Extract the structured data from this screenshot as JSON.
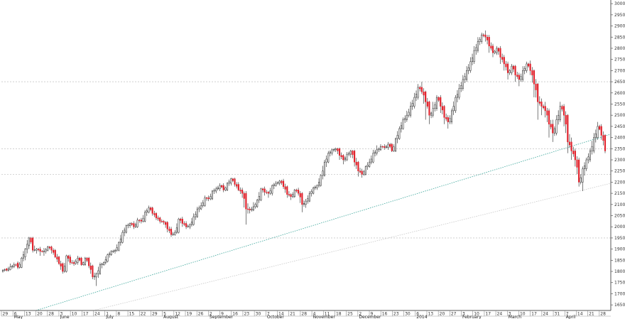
{
  "chart_data": {
    "type": "candlestick",
    "title": "",
    "xlabel": "",
    "ylabel": "",
    "ylim": [
      1625,
      3010
    ],
    "yticks": [
      1650,
      1700,
      1750,
      1800,
      1850,
      1900,
      1950,
      2000,
      2050,
      2100,
      2150,
      2200,
      2250,
      2300,
      2350,
      2400,
      2450,
      2500,
      2550,
      2600,
      2650,
      2700,
      2750,
      2800,
      2850,
      2900,
      2950,
      3000
    ],
    "ytick_labels": [
      "1650",
      "1700",
      "1750",
      "1800",
      "1850",
      "1900",
      "1950",
      "2000",
      "2050",
      "2100",
      "2150",
      "2200",
      "2250",
      "2300",
      "2350",
      "2400",
      "2450",
      "2500",
      "2550",
      "2600",
      "2650",
      "2700",
      "2750",
      "2800",
      "2850",
      "2900",
      "2950",
      "3000"
    ],
    "xtick_labels": [
      "29",
      "6",
      "13",
      "20",
      "28",
      "3",
      "10",
      "17",
      "24",
      "1",
      "8",
      "15",
      "22",
      "29",
      "5",
      "12",
      "19",
      "26",
      "2",
      "9",
      "16",
      "23",
      "30",
      "7",
      "14",
      "21",
      "28",
      "4",
      "11",
      "18",
      "25",
      "2",
      "9",
      "16",
      "23",
      "30",
      "6",
      "13",
      "20",
      "27",
      "3",
      "10",
      "17",
      "24",
      "3",
      "10",
      "17",
      "24",
      "31",
      "7",
      "14",
      "21",
      "28"
    ],
    "month_labels": [
      "May",
      "June",
      "July",
      "August",
      "September",
      "October",
      "November",
      "December",
      "2014",
      "February",
      "March",
      "April"
    ],
    "month_tick_index": [
      1,
      5,
      9,
      14,
      18,
      23,
      27,
      31,
      36,
      40,
      44,
      49
    ],
    "grid": false,
    "colors": {
      "up": "#ffffff",
      "down": "#e0202a",
      "outline": "#222222",
      "trend": "#3aa59a",
      "support": "#c8c8c8"
    },
    "horizontal_levels": [
      1950,
      2235,
      2350,
      2650
    ],
    "trendlines": [
      {
        "from": {
          "tick_index": 3,
          "value": 1625
        },
        "to": {
          "tick_index": 53,
          "value": 2415
        }
      },
      {
        "from": {
          "tick_index": 8,
          "value": 1625
        },
        "to": {
          "tick_index": 53,
          "value": 2195
        }
      }
    ],
    "ohlc_anchors": [
      [
        1800,
        1805,
        1795,
        1810
      ],
      [
        1812,
        1805,
        1800,
        1815
      ],
      [
        1808,
        1820,
        1805,
        1835
      ],
      [
        1822,
        1830,
        1815,
        1840
      ],
      [
        1838,
        1818,
        1810,
        1845
      ],
      [
        1818,
        1860,
        1815,
        1865
      ],
      [
        1865,
        1900,
        1850,
        1905
      ],
      [
        1915,
        1950,
        1900,
        1955
      ],
      [
        1950,
        1895,
        1885,
        1955
      ],
      [
        1895,
        1900,
        1880,
        1905
      ],
      [
        1900,
        1890,
        1870,
        1910
      ],
      [
        1888,
        1890,
        1870,
        1905
      ],
      [
        1895,
        1910,
        1890,
        1915
      ],
      [
        1910,
        1895,
        1880,
        1915
      ],
      [
        1895,
        1865,
        1860,
        1900
      ],
      [
        1865,
        1835,
        1830,
        1870
      ],
      [
        1835,
        1800,
        1790,
        1840
      ],
      [
        1800,
        1870,
        1795,
        1875
      ],
      [
        1865,
        1840,
        1830,
        1875
      ],
      [
        1840,
        1835,
        1825,
        1850
      ],
      [
        1840,
        1860,
        1830,
        1870
      ],
      [
        1860,
        1830,
        1825,
        1865
      ],
      [
        1830,
        1860,
        1825,
        1865
      ],
      [
        1860,
        1825,
        1815,
        1865
      ],
      [
        1825,
        1775,
        1765,
        1830
      ],
      [
        1775,
        1790,
        1735,
        1795
      ],
      [
        1790,
        1830,
        1785,
        1840
      ],
      [
        1830,
        1840,
        1825,
        1845
      ],
      [
        1845,
        1875,
        1840,
        1880
      ],
      [
        1875,
        1890,
        1870,
        1895
      ],
      [
        1890,
        1895,
        1880,
        1900
      ],
      [
        1895,
        1930,
        1890,
        1935
      ],
      [
        1930,
        1975,
        1925,
        1985
      ],
      [
        1975,
        2005,
        1970,
        2010
      ],
      [
        2005,
        2015,
        1995,
        2020
      ],
      [
        2015,
        2000,
        1990,
        2025
      ],
      [
        2000,
        2030,
        1995,
        2040
      ],
      [
        2030,
        2025,
        2015,
        2040
      ],
      [
        2025,
        2065,
        2020,
        2075
      ],
      [
        2065,
        2085,
        2060,
        2095
      ],
      [
        2085,
        2060,
        2050,
        2090
      ],
      [
        2060,
        2040,
        2030,
        2065
      ],
      [
        2040,
        2025,
        2015,
        2045
      ],
      [
        2025,
        2020,
        2010,
        2030
      ],
      [
        2020,
        1990,
        1975,
        2025
      ],
      [
        1990,
        1965,
        1955,
        2000
      ],
      [
        1965,
        1975,
        1960,
        1985
      ],
      [
        1975,
        2035,
        1970,
        2040
      ],
      [
        2035,
        2015,
        2000,
        2045
      ],
      [
        2015,
        2000,
        1990,
        2025
      ],
      [
        2000,
        2010,
        1990,
        2015
      ],
      [
        2010,
        2045,
        2005,
        2060
      ],
      [
        2045,
        2080,
        2040,
        2090
      ],
      [
        2080,
        2095,
        2075,
        2110
      ],
      [
        2095,
        2130,
        2090,
        2140
      ],
      [
        2130,
        2125,
        2115,
        2140
      ],
      [
        2125,
        2160,
        2120,
        2165
      ],
      [
        2160,
        2170,
        2150,
        2180
      ],
      [
        2170,
        2185,
        2160,
        2195
      ],
      [
        2185,
        2165,
        2155,
        2195
      ],
      [
        2165,
        2195,
        2160,
        2200
      ],
      [
        2195,
        2215,
        2185,
        2220
      ],
      [
        2215,
        2190,
        2180,
        2220
      ],
      [
        2190,
        2165,
        2160,
        2200
      ],
      [
        2165,
        2150,
        2130,
        2175
      ],
      [
        2150,
        2080,
        2010,
        2160
      ],
      [
        2080,
        2075,
        2060,
        2090
      ],
      [
        2075,
        2090,
        2070,
        2110
      ],
      [
        2090,
        2120,
        2085,
        2125
      ],
      [
        2120,
        2170,
        2115,
        2175
      ],
      [
        2170,
        2155,
        2140,
        2180
      ],
      [
        2155,
        2150,
        2130,
        2160
      ],
      [
        2150,
        2185,
        2140,
        2190
      ],
      [
        2185,
        2195,
        2180,
        2205
      ],
      [
        2195,
        2205,
        2185,
        2210
      ],
      [
        2205,
        2180,
        2170,
        2215
      ],
      [
        2180,
        2145,
        2130,
        2185
      ],
      [
        2145,
        2135,
        2120,
        2150
      ],
      [
        2135,
        2165,
        2130,
        2170
      ],
      [
        2165,
        2150,
        2140,
        2175
      ],
      [
        2150,
        2100,
        2065,
        2155
      ],
      [
        2100,
        2115,
        2085,
        2125
      ],
      [
        2115,
        2150,
        2110,
        2160
      ],
      [
        2150,
        2175,
        2145,
        2180
      ],
      [
        2175,
        2185,
        2165,
        2190
      ],
      [
        2185,
        2230,
        2180,
        2235
      ],
      [
        2230,
        2290,
        2225,
        2300
      ],
      [
        2290,
        2330,
        2285,
        2340
      ],
      [
        2330,
        2345,
        2320,
        2350
      ],
      [
        2345,
        2350,
        2335,
        2355
      ],
      [
        2350,
        2320,
        2300,
        2355
      ],
      [
        2320,
        2300,
        2280,
        2325
      ],
      [
        2300,
        2325,
        2295,
        2335
      ],
      [
        2325,
        2340,
        2310,
        2345
      ],
      [
        2340,
        2290,
        2270,
        2345
      ],
      [
        2290,
        2250,
        2225,
        2295
      ],
      [
        2250,
        2235,
        2220,
        2260
      ],
      [
        2235,
        2270,
        2230,
        2275
      ],
      [
        2270,
        2290,
        2265,
        2305
      ],
      [
        2290,
        2330,
        2285,
        2345
      ],
      [
        2330,
        2345,
        2320,
        2365
      ],
      [
        2345,
        2360,
        2340,
        2370
      ],
      [
        2360,
        2355,
        2345,
        2370
      ],
      [
        2355,
        2370,
        2345,
        2380
      ],
      [
        2370,
        2340,
        2335,
        2375
      ],
      [
        2340,
        2395,
        2335,
        2400
      ],
      [
        2395,
        2440,
        2390,
        2450
      ],
      [
        2440,
        2480,
        2435,
        2490
      ],
      [
        2480,
        2500,
        2470,
        2520
      ],
      [
        2500,
        2540,
        2490,
        2560
      ],
      [
        2540,
        2580,
        2530,
        2600
      ],
      [
        2580,
        2625,
        2570,
        2640
      ],
      [
        2625,
        2605,
        2595,
        2650
      ],
      [
        2605,
        2560,
        2480,
        2610
      ],
      [
        2560,
        2500,
        2460,
        2565
      ],
      [
        2500,
        2530,
        2490,
        2560
      ],
      [
        2530,
        2580,
        2520,
        2590
      ],
      [
        2580,
        2540,
        2510,
        2590
      ],
      [
        2540,
        2490,
        2460,
        2545
      ],
      [
        2490,
        2470,
        2440,
        2500
      ],
      [
        2470,
        2520,
        2460,
        2530
      ],
      [
        2520,
        2580,
        2510,
        2590
      ],
      [
        2580,
        2620,
        2570,
        2640
      ],
      [
        2620,
        2660,
        2610,
        2680
      ],
      [
        2660,
        2700,
        2650,
        2720
      ],
      [
        2700,
        2740,
        2690,
        2760
      ],
      [
        2740,
        2790,
        2730,
        2810
      ],
      [
        2790,
        2830,
        2780,
        2850
      ],
      [
        2830,
        2860,
        2820,
        2870
      ],
      [
        2860,
        2850,
        2830,
        2880
      ],
      [
        2850,
        2810,
        2780,
        2860
      ],
      [
        2810,
        2780,
        2760,
        2820
      ],
      [
        2780,
        2800,
        2770,
        2810
      ],
      [
        2800,
        2760,
        2730,
        2810
      ],
      [
        2760,
        2730,
        2700,
        2770
      ],
      [
        2730,
        2690,
        2660,
        2740
      ],
      [
        2690,
        2720,
        2680,
        2730
      ],
      [
        2720,
        2680,
        2650,
        2725
      ],
      [
        2680,
        2660,
        2630,
        2690
      ],
      [
        2660,
        2700,
        2650,
        2720
      ],
      [
        2700,
        2730,
        2690,
        2740
      ],
      [
        2730,
        2700,
        2680,
        2745
      ],
      [
        2700,
        2640,
        2580,
        2705
      ],
      [
        2640,
        2560,
        2480,
        2645
      ],
      [
        2560,
        2540,
        2500,
        2575
      ],
      [
        2540,
        2520,
        2490,
        2560
      ],
      [
        2520,
        2460,
        2400,
        2530
      ],
      [
        2460,
        2420,
        2380,
        2480
      ],
      [
        2420,
        2480,
        2410,
        2500
      ],
      [
        2480,
        2540,
        2470,
        2560
      ],
      [
        2540,
        2500,
        2450,
        2550
      ],
      [
        2500,
        2380,
        2330,
        2505
      ],
      [
        2380,
        2340,
        2300,
        2400
      ],
      [
        2340,
        2300,
        2270,
        2350
      ],
      [
        2300,
        2200,
        2180,
        2310
      ],
      [
        2200,
        2260,
        2160,
        2270
      ],
      [
        2260,
        2300,
        2250,
        2310
      ],
      [
        2300,
        2340,
        2290,
        2350
      ],
      [
        2340,
        2400,
        2330,
        2420
      ],
      [
        2400,
        2450,
        2390,
        2470
      ],
      [
        2450,
        2410,
        2390,
        2460
      ],
      [
        2410,
        2340,
        2330,
        2415
      ]
    ]
  }
}
